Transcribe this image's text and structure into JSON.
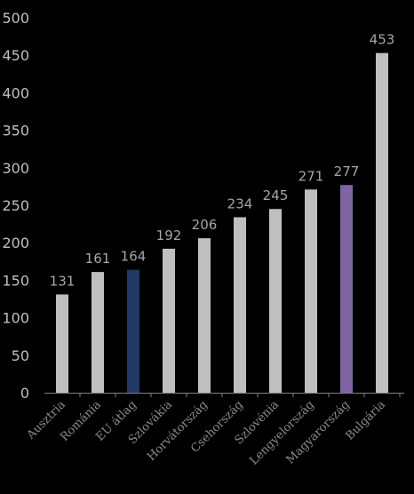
{
  "chart_data": {
    "type": "bar",
    "categories": [
      "Ausztria",
      "Románia",
      "EU átlag",
      "Szlovákia",
      "Horvátország",
      "Csehország",
      "Szlovénia",
      "Lengyelország",
      "Magyarország",
      "Bulgária"
    ],
    "values": [
      131,
      161,
      164,
      192,
      206,
      234,
      245,
      271,
      277,
      453
    ],
    "colors": [
      "#bfbfbf",
      "#bfbfbf",
      "#1f3864",
      "#bfbfbf",
      "#bfbfbf",
      "#bfbfbf",
      "#bfbfbf",
      "#bfbfbf",
      "#8064a2",
      "#bfbfbf"
    ],
    "yticks": [
      0,
      50,
      100,
      150,
      200,
      250,
      300,
      350,
      400,
      450,
      500
    ],
    "ylim": [
      0,
      500
    ],
    "grid": false,
    "legend": "none",
    "data_labels": true,
    "title": "",
    "xlabel": "",
    "ylabel": ""
  }
}
